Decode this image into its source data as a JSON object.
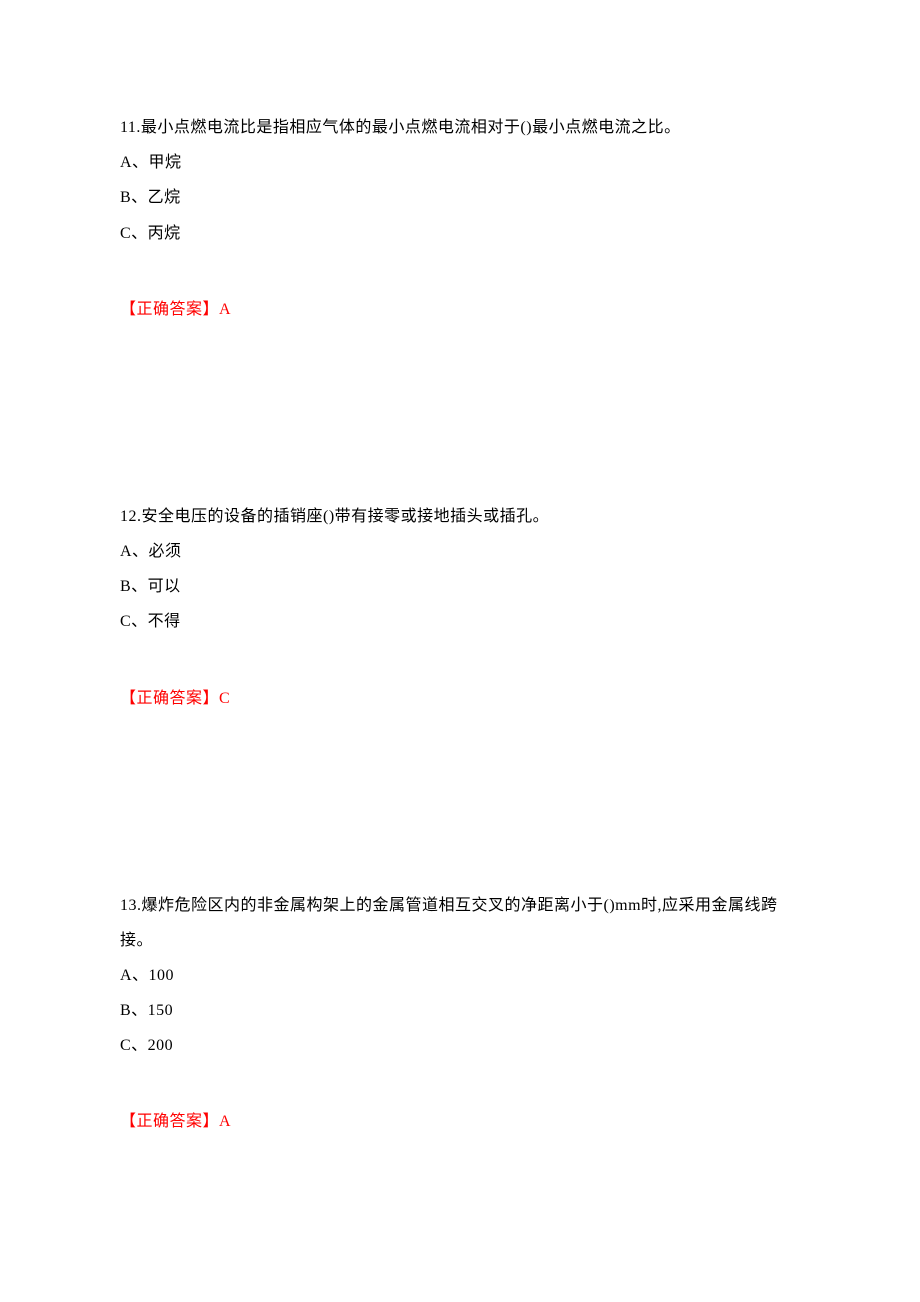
{
  "colors": {
    "text": "#000000",
    "answer": "#ff0000",
    "background": "#ffffff"
  },
  "typography": {
    "font_family": "SimSun",
    "font_size": 16,
    "line_height": 2.2
  },
  "questions": [
    {
      "number": "11.",
      "stem": "最小点燃电流比是指相应气体的最小点燃电流相对于()最小点燃电流之比。",
      "options": [
        {
          "label": "A、甲烷"
        },
        {
          "label": "B、乙烷"
        },
        {
          "label": "C、丙烷"
        }
      ],
      "answer_prefix": "【正确答案】",
      "answer_value": "A"
    },
    {
      "number": "12.",
      "stem": "安全电压的设备的插销座()带有接零或接地插头或插孔。",
      "options": [
        {
          "label": "A、必须"
        },
        {
          "label": "B、可以"
        },
        {
          "label": "C、不得"
        }
      ],
      "answer_prefix": "【正确答案】",
      "answer_value": "C"
    },
    {
      "number": "13.",
      "stem": "爆炸危险区内的非金属构架上的金属管道相互交叉的净距离小于()mm时,应采用金属线跨接。",
      "options": [
        {
          "label": "A、100"
        },
        {
          "label": "B、150"
        },
        {
          "label": "C、200"
        }
      ],
      "answer_prefix": "【正确答案】",
      "answer_value": "A"
    }
  ]
}
